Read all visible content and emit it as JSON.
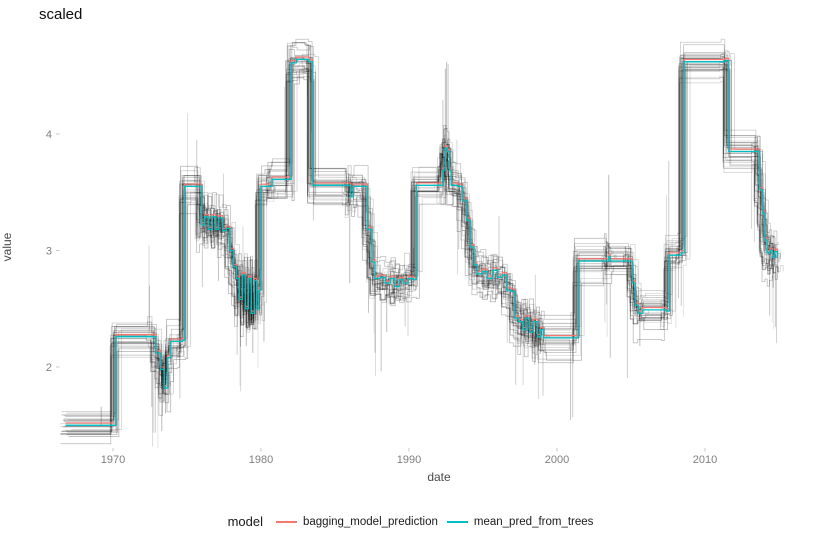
{
  "title": "scaled",
  "axes": {
    "x_label": "date",
    "y_label": "value",
    "x_ticks": [
      1970,
      1980,
      1990,
      2000,
      2010
    ],
    "y_ticks": [
      2,
      3,
      4
    ],
    "x_domain": [
      1966.5,
      2017.3
    ],
    "y_domain": [
      1.33,
      4.8
    ],
    "tick_color": "#7f7f7f",
    "grid": "off"
  },
  "legend": {
    "title": "model",
    "entries": [
      {
        "label": "bagging_model_prediction",
        "color": "#F8766D"
      },
      {
        "label": "mean_pred_from_trees",
        "color": "#00BFC4"
      }
    ]
  },
  "chart_data": {
    "type": "line",
    "title": "scaled",
    "xlabel": "date",
    "ylabel": "value",
    "legend_position": "bottom",
    "mean_points": [
      [
        1966.8,
        1.5
      ],
      [
        1970.2,
        2.26
      ],
      [
        1972.6,
        2.26
      ],
      [
        1972.9,
        2.12
      ],
      [
        1973.2,
        1.98
      ],
      [
        1973.45,
        1.82
      ],
      [
        1973.7,
        2.08
      ],
      [
        1973.9,
        2.22
      ],
      [
        1974.7,
        2.23
      ],
      [
        1974.85,
        3.55
      ],
      [
        1975.6,
        3.55
      ],
      [
        1976.0,
        3.22
      ],
      [
        1976.2,
        3.29
      ],
      [
        1976.45,
        3.18
      ],
      [
        1976.7,
        3.29
      ],
      [
        1976.95,
        3.18
      ],
      [
        1977.15,
        3.28
      ],
      [
        1977.4,
        3.17
      ],
      [
        1977.65,
        3.19
      ],
      [
        1977.9,
        3.0
      ],
      [
        1978.15,
        2.86
      ],
      [
        1978.35,
        2.76
      ],
      [
        1978.55,
        2.58
      ],
      [
        1978.75,
        2.79
      ],
      [
        1978.95,
        2.5
      ],
      [
        1979.15,
        2.76
      ],
      [
        1979.35,
        2.46
      ],
      [
        1979.55,
        2.74
      ],
      [
        1979.7,
        2.5
      ],
      [
        1979.85,
        2.66
      ],
      [
        1980.0,
        3.55
      ],
      [
        1980.55,
        3.55
      ],
      [
        1980.75,
        3.61
      ],
      [
        1981.9,
        3.61
      ],
      [
        1982.05,
        4.61
      ],
      [
        1982.4,
        4.64
      ],
      [
        1983.25,
        4.62
      ],
      [
        1983.5,
        3.56
      ],
      [
        1985.85,
        3.56
      ],
      [
        1986.05,
        3.46
      ],
      [
        1986.25,
        3.55
      ],
      [
        1986.9,
        3.55
      ],
      [
        1987.2,
        3.18
      ],
      [
        1987.5,
        2.9
      ],
      [
        1987.7,
        2.76
      ],
      [
        1988.05,
        2.77
      ],
      [
        1988.4,
        2.72
      ],
      [
        1988.75,
        2.76
      ],
      [
        1989.05,
        2.69
      ],
      [
        1989.35,
        2.75
      ],
      [
        1989.65,
        2.72
      ],
      [
        1989.95,
        2.76
      ],
      [
        1990.3,
        2.75
      ],
      [
        1990.5,
        3.56
      ],
      [
        1992.1,
        3.56
      ],
      [
        1992.3,
        3.69
      ],
      [
        1992.45,
        3.88
      ],
      [
        1992.6,
        3.85
      ],
      [
        1992.75,
        3.69
      ],
      [
        1992.85,
        3.56
      ],
      [
        1993.3,
        3.55
      ],
      [
        1993.6,
        3.43
      ],
      [
        1993.9,
        3.26
      ],
      [
        1994.15,
        3.03
      ],
      [
        1994.4,
        2.88
      ],
      [
        1994.6,
        2.8
      ],
      [
        1994.95,
        2.82
      ],
      [
        1995.3,
        2.76
      ],
      [
        1995.65,
        2.83
      ],
      [
        1996.0,
        2.77
      ],
      [
        1996.3,
        2.79
      ],
      [
        1996.6,
        2.66
      ],
      [
        1996.9,
        2.65
      ],
      [
        1997.15,
        2.42
      ],
      [
        1997.4,
        2.39
      ],
      [
        1997.7,
        2.32
      ],
      [
        1997.9,
        2.42
      ],
      [
        1998.15,
        2.3
      ],
      [
        1998.4,
        2.39
      ],
      [
        1998.7,
        2.26
      ],
      [
        1998.9,
        2.32
      ],
      [
        1999.1,
        2.25
      ],
      [
        2001.2,
        2.25
      ],
      [
        2001.45,
        2.91
      ],
      [
        2003.4,
        2.91
      ],
      [
        2003.5,
        2.95
      ],
      [
        2003.6,
        2.91
      ],
      [
        2004.8,
        2.91
      ],
      [
        2005.1,
        2.72
      ],
      [
        2005.3,
        2.53
      ],
      [
        2005.5,
        2.46
      ],
      [
        2005.8,
        2.49
      ],
      [
        2007.4,
        2.48
      ],
      [
        2007.6,
        2.96
      ],
      [
        2008.4,
        2.98
      ],
      [
        2008.6,
        4.62
      ],
      [
        2011.35,
        4.63
      ],
      [
        2011.6,
        3.85
      ],
      [
        2013.5,
        3.85
      ],
      [
        2013.7,
        3.52
      ],
      [
        2013.9,
        3.32
      ],
      [
        2014.05,
        3.09
      ],
      [
        2014.2,
        2.98
      ],
      [
        2014.4,
        3.0
      ],
      [
        2014.55,
        2.94
      ],
      [
        2014.7,
        2.99
      ],
      [
        2014.9,
        2.94
      ]
    ],
    "series": [
      {
        "name": "bagging_model_prediction",
        "color": "#F8766D",
        "points_ref": "mean_points",
        "value_offset": 0.02,
        "width": 1.1
      },
      {
        "name": "mean_pred_from_trees",
        "color": "#00BFC4",
        "points_ref": "mean_points",
        "value_offset": 0.0,
        "width": 1.3
      }
    ],
    "tree_ensemble": {
      "count": 30,
      "seed": 7,
      "base_jitter": 0.09,
      "step_jitter": 0.11,
      "x_jitter": 0.8,
      "spike_probability": 0.022,
      "color": "#000000",
      "feature_spikes": [
        [
          1973.3,
          2.2,
          1.45
        ],
        [
          1973.55,
          2.2,
          1.6
        ],
        [
          1969.2,
          1.5,
          1.66
        ],
        [
          1979.0,
          2.7,
          2.18
        ],
        [
          1979.45,
          2.7,
          2.12
        ],
        [
          1980.2,
          3.5,
          2.22
        ],
        [
          1986.0,
          3.55,
          2.72
        ],
        [
          1988.5,
          2.75,
          2.3
        ],
        [
          1992.45,
          3.9,
          4.56
        ],
        [
          1992.55,
          3.9,
          4.62
        ],
        [
          1998.5,
          2.3,
          2.02
        ],
        [
          2003.5,
          2.91,
          3.65
        ],
        [
          2005.6,
          2.5,
          2.18
        ],
        [
          2014.6,
          3.0,
          2.68
        ]
      ]
    }
  }
}
